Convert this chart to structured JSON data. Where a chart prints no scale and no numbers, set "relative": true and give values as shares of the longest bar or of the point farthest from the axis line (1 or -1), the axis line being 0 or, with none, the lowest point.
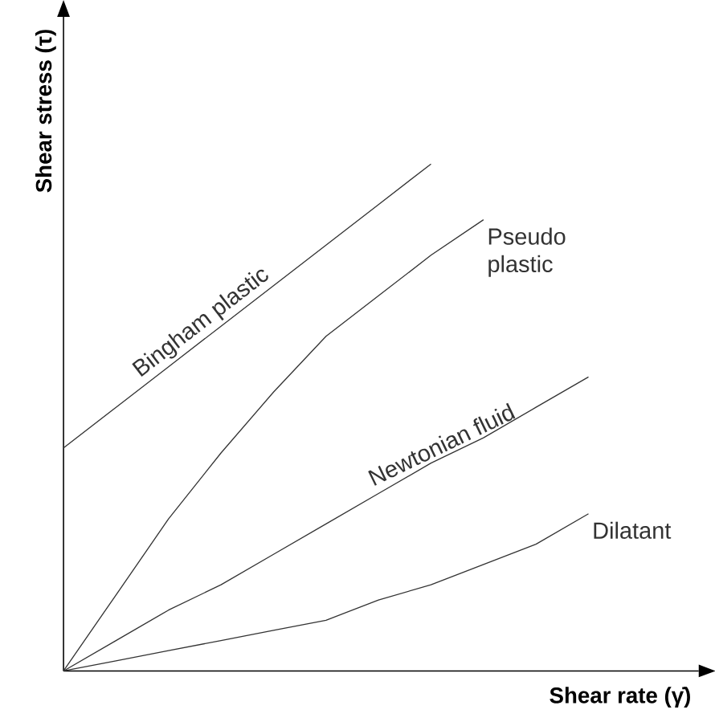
{
  "chart_data": {
    "type": "line",
    "relative": true,
    "xlabel": "Shear rate (γ̇)",
    "ylabel": "Shear stress (τ)",
    "marker": "none",
    "line_style": "solid",
    "categories": [
      null,
      null,
      null,
      null,
      null,
      null,
      null,
      null,
      null,
      null,
      null
    ],
    "series": [
      {
        "name": "Bingham plastic",
        "color": "#333333",
        "values": [
          0.44,
          0.52,
          0.6,
          0.68,
          0.76,
          0.84,
          0.92,
          1.0,
          null,
          null,
          null
        ]
      },
      {
        "name": "Pseudo plastic",
        "color": "#333333",
        "values": [
          0,
          0.15,
          0.3,
          0.43,
          0.55,
          0.66,
          0.74,
          0.82,
          0.89,
          null,
          null
        ]
      },
      {
        "name": "Newtonian fluid",
        "color": "#333333",
        "values": [
          0,
          0.06,
          0.12,
          0.17,
          0.23,
          0.29,
          0.35,
          0.41,
          0.46,
          0.52,
          0.58
        ]
      },
      {
        "name": "Dilatant",
        "color": "#333333",
        "values": [
          0,
          0.02,
          0.04,
          0.06,
          0.08,
          0.1,
          0.14,
          0.17,
          0.21,
          0.25,
          0.31
        ]
      }
    ]
  }
}
